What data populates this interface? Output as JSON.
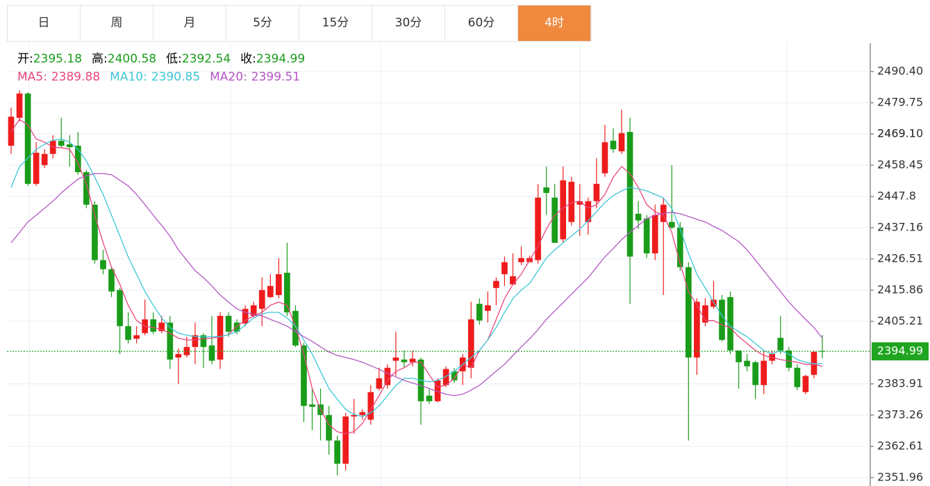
{
  "tabs": {
    "items": [
      "日",
      "周",
      "月",
      "5分",
      "15分",
      "30分",
      "60分",
      "4时"
    ],
    "active": 7
  },
  "chart_data": {
    "type": "candlestick",
    "info_labels": [
      "开:",
      "高:",
      "低:",
      "收:"
    ],
    "up_color": "#ee1c1c",
    "down_color": "#1a9c1a",
    "open": [
      2465.1,
      2474.6,
      2482.9,
      2452.1,
      2458.5,
      2462.3,
      2466.8,
      2465.6,
      2465.1,
      2456.1,
      2445.0,
      2426.1,
      2423.0,
      2415.9,
      2403.6,
      2399.3,
      2401.2,
      2405.9,
      2401.9,
      2404.8,
      2392.9,
      2393.7,
      2396.5,
      2400.5,
      2397.0,
      2392.2,
      2407.1,
      2404.8,
      2404.5,
      2407.1,
      2409.5,
      2413.5,
      2414.2,
      2421.8,
      2408.8,
      2397.0,
      2376.9,
      2376.9,
      2373.3,
      2364.6,
      2356.7,
      2372.8,
      2373.3,
      2371.7,
      2382.3,
      2383.5,
      2391.8,
      2392.2,
      2391.3,
      2392.2,
      2379.9,
      2378.0,
      2383.5,
      2388.2,
      2388.2,
      2389.4,
      2411.2,
      2408.8,
      2416.6,
      2421.3,
      2417.8,
      2425.4,
      2425.4,
      2426.1,
      2450.9,
      2447.4,
      2433.2,
      2439.1,
      2445.0,
      2439.1,
      2446.2,
      2455.7,
      2466.8,
      2463.2,
      2469.8,
      2441.9,
      2440.3,
      2428.4,
      2439.1,
      2439.1,
      2437.2,
      2423.7,
      2392.9,
      2404.8,
      2410.2,
      2412.6,
      2413.5,
      2395.3,
      2391.8,
      2391.3,
      2383.5,
      2391.8,
      2399.6,
      2395.3,
      2389.4,
      2381.1,
      2387.0,
      2395.18
    ],
    "high": [
      2478.1,
      2484.0,
      2483.3,
      2466.3,
      2463.9,
      2468.7,
      2474.6,
      2468.7,
      2469.8,
      2456.8,
      2446.2,
      2429.6,
      2423.7,
      2416.6,
      2408.3,
      2403.6,
      2412.6,
      2408.3,
      2407.1,
      2407.1,
      2396.0,
      2400.0,
      2404.8,
      2401.2,
      2407.1,
      2408.3,
      2408.3,
      2405.9,
      2410.7,
      2411.9,
      2420.2,
      2421.3,
      2426.8,
      2432.0,
      2410.7,
      2397.9,
      2382.3,
      2382.3,
      2376.4,
      2366.2,
      2374.0,
      2378.8,
      2375.2,
      2383.5,
      2389.4,
      2390.6,
      2401.7,
      2395.3,
      2395.3,
      2392.9,
      2382.3,
      2385.8,
      2389.9,
      2389.4,
      2394.1,
      2411.9,
      2413.1,
      2415.4,
      2420.2,
      2427.3,
      2428.4,
      2430.8,
      2427.7,
      2452.1,
      2458.0,
      2452.1,
      2458.0,
      2454.5,
      2452.1,
      2447.4,
      2460.8,
      2472.2,
      2471.0,
      2477.4,
      2474.6,
      2446.2,
      2441.5,
      2445.0,
      2447.4,
      2458.5,
      2439.1,
      2425.4,
      2413.1,
      2413.1,
      2419.0,
      2414.2,
      2415.4,
      2395.3,
      2394.1,
      2391.8,
      2395.3,
      2395.3,
      2407.1,
      2396.5,
      2390.6,
      2387.0,
      2395.3,
      2400.58
    ],
    "low": [
      2462.3,
      2473.4,
      2451.4,
      2451.4,
      2457.5,
      2460.8,
      2464.6,
      2458.0,
      2455.2,
      2443.8,
      2424.9,
      2421.3,
      2413.5,
      2394.1,
      2397.7,
      2397.7,
      2400.5,
      2400.8,
      2401.2,
      2389.0,
      2383.9,
      2392.9,
      2390.6,
      2389.4,
      2390.6,
      2389.0,
      2400.0,
      2400.8,
      2403.6,
      2406.4,
      2403.6,
      2413.1,
      2413.1,
      2407.1,
      2396.5,
      2370.9,
      2368.1,
      2364.6,
      2359.8,
      2352.7,
      2354.4,
      2366.9,
      2371.7,
      2370.0,
      2381.6,
      2382.3,
      2386.6,
      2389.4,
      2389.9,
      2370.0,
      2377.1,
      2377.6,
      2382.8,
      2384.2,
      2383.5,
      2385.8,
      2404.1,
      2404.8,
      2410.7,
      2417.3,
      2417.8,
      2424.4,
      2425.4,
      2424.9,
      2441.5,
      2432.0,
      2432.0,
      2437.9,
      2434.4,
      2434.8,
      2443.8,
      2454.5,
      2462.7,
      2462.3,
      2411.2,
      2436.7,
      2426.8,
      2426.1,
      2414.2,
      2436.7,
      2422.5,
      2364.6,
      2387.0,
      2403.6,
      2409.5,
      2398.4,
      2394.1,
      2382.3,
      2388.2,
      2378.8,
      2380.4,
      2390.6,
      2394.1,
      2388.2,
      2381.8,
      2380.4,
      2385.8,
      2392.54
    ],
    "close": [
      2475.0,
      2482.9,
      2452.1,
      2462.7,
      2462.3,
      2466.8,
      2465.1,
      2464.6,
      2456.1,
      2445.0,
      2426.1,
      2423.0,
      2415.4,
      2403.6,
      2398.9,
      2400.5,
      2405.9,
      2401.7,
      2404.8,
      2392.2,
      2394.1,
      2396.5,
      2400.5,
      2396.5,
      2391.8,
      2407.1,
      2401.7,
      2401.7,
      2409.5,
      2410.7,
      2415.9,
      2417.3,
      2421.3,
      2408.3,
      2397.0,
      2376.4,
      2376.1,
      2373.3,
      2364.6,
      2356.7,
      2372.8,
      2373.3,
      2374.3,
      2381.1,
      2385.8,
      2389.4,
      2392.9,
      2391.3,
      2392.5,
      2378.0,
      2378.0,
      2385.1,
      2389.0,
      2385.1,
      2392.9,
      2405.9,
      2405.5,
      2410.7,
      2419.0,
      2425.4,
      2420.6,
      2426.8,
      2426.8,
      2447.4,
      2449.0,
      2432.0,
      2453.3,
      2452.8,
      2446.2,
      2446.2,
      2452.1,
      2466.3,
      2463.9,
      2469.4,
      2427.3,
      2439.6,
      2428.4,
      2441.5,
      2445.0,
      2437.2,
      2423.7,
      2392.9,
      2411.9,
      2410.7,
      2412.6,
      2398.9,
      2395.3,
      2391.3,
      2389.9,
      2383.5,
      2391.8,
      2394.1,
      2395.3,
      2389.4,
      2382.8,
      2386.6,
      2394.8,
      2394.99
    ],
    "series": [
      {
        "name": "MA5:",
        "color": "#e8467c",
        "values": [
          2469.8,
          2474.1,
          2472.2,
          2467.4,
          2466.3,
          2464.6,
          2464.4,
          2463.9,
          2459.2,
          2452.1,
          2441.4,
          2432.0,
          2423.7,
          2417.8,
          2410.7,
          2405.5,
          2403.6,
          2403.1,
          2402.4,
          2401.2,
          2399.5,
          2398.9,
          2398.9,
          2399.3,
          2399.5,
          2400.0,
          2400.7,
          2403.6,
          2405.5,
          2407.1,
          2408.3,
          2410.7,
          2411.8,
          2410.7,
          2403.6,
          2394.1,
          2382.3,
          2375.2,
          2370.0,
          2367.6,
          2366.9,
          2367.6,
          2370.4,
          2375.2,
          2379.9,
          2385.1,
          2388.2,
          2389.4,
          2391.3,
          2391.3,
          2387.0,
          2382.8,
          2383.5,
          2385.8,
          2390.6,
          2389.4,
          2395.3,
          2398.9,
          2405.9,
          2413.0,
          2417.8,
          2421.3,
          2426.1,
          2430.8,
          2436.7,
          2441.4,
          2443.8,
          2445.7,
          2446.2,
          2443.8,
          2445.0,
          2448.5,
          2454.4,
          2458.0,
          2455.6,
          2450.9,
          2445.0,
          2442.6,
          2441.4,
          2435.5,
          2424.9,
          2415.4,
          2410.7,
          2405.5,
          2405.5,
          2404.0,
          2403.1,
          2400.0,
          2397.7,
          2395.3,
          2393.6,
          2392.9,
          2392.2,
          2391.7,
          2391.3,
          2390.6,
          2390.6,
          2389.88
        ]
      },
      {
        "name": "MA10:",
        "color": "#3cc6d6",
        "values": [
          2450.9,
          2458.0,
          2460.8,
          2463.9,
          2465.6,
          2467.0,
          2467.4,
          2466.3,
          2463.9,
          2459.9,
          2454.4,
          2448.5,
          2441.4,
          2434.3,
          2427.2,
          2421.3,
          2415.4,
          2410.7,
          2406.4,
          2403.1,
          2401.2,
          2400.5,
          2400.0,
          2400.0,
          2400.0,
          2400.0,
          2400.7,
          2401.7,
          2404.0,
          2406.4,
          2407.8,
          2408.3,
          2408.3,
          2406.4,
          2403.6,
          2398.9,
          2394.1,
          2388.2,
          2382.3,
          2378.7,
          2375.2,
          2373.5,
          2372.8,
          2374.0,
          2376.4,
          2379.9,
          2383.4,
          2385.8,
          2385.8,
          2385.1,
          2384.6,
          2385.1,
          2386.5,
          2388.2,
          2390.6,
          2392.9,
          2395.3,
          2398.9,
          2403.1,
          2408.3,
          2413.0,
          2415.9,
          2418.2,
          2422.5,
          2426.8,
          2429.6,
          2432.0,
          2434.3,
          2436.7,
          2439.5,
          2442.6,
          2445.7,
          2448.1,
          2449.7,
          2450.9,
          2450.4,
          2449.7,
          2448.5,
          2447.3,
          2443.8,
          2436.7,
          2428.4,
          2421.3,
          2416.6,
          2411.8,
          2407.1,
          2403.6,
          2401.7,
          2400.0,
          2397.7,
          2395.3,
          2394.1,
          2395.3,
          2394.1,
          2392.2,
          2391.3,
          2390.8,
          2390.85
        ]
      },
      {
        "name": "MA20:",
        "color": "#b455c4",
        "values": [
          2432.0,
          2435.5,
          2439.1,
          2441.4,
          2443.8,
          2446.2,
          2449.0,
          2451.4,
          2453.7,
          2454.9,
          2455.6,
          2455.6,
          2455.2,
          2453.3,
          2451.4,
          2448.5,
          2445.0,
          2441.4,
          2437.9,
          2434.3,
          2429.6,
          2426.1,
          2422.5,
          2420.1,
          2417.3,
          2414.2,
          2411.8,
          2409.5,
          2408.3,
          2407.6,
          2407.1,
          2405.9,
          2404.8,
          2403.6,
          2401.7,
          2400.0,
          2398.4,
          2396.5,
          2394.8,
          2393.6,
          2392.9,
          2392.2,
          2391.3,
          2390.1,
          2388.9,
          2387.5,
          2386.3,
          2385.1,
          2384.2,
          2383.4,
          2382.3,
          2381.3,
          2380.4,
          2379.9,
          2380.4,
          2381.8,
          2383.4,
          2385.8,
          2388.2,
          2390.6,
          2393.6,
          2396.5,
          2399.3,
          2402.4,
          2405.9,
          2408.8,
          2411.6,
          2414.5,
          2417.3,
          2420.1,
          2423.7,
          2427.2,
          2430.1,
          2433.1,
          2435.5,
          2437.9,
          2440.2,
          2441.4,
          2442.1,
          2442.4,
          2441.9,
          2441.0,
          2440.0,
          2439.1,
          2437.6,
          2436.2,
          2434.3,
          2432.4,
          2429.6,
          2426.1,
          2422.5,
          2419.0,
          2415.4,
          2411.8,
          2408.8,
          2405.9,
          2403.1,
          2399.51
        ]
      }
    ],
    "ylim": [
      2349.1,
      2500.1
    ],
    "yticks": [
      {
        "value": 2490.4,
        "label": "2490.40"
      },
      2479.75,
      2469.1,
      {
        "value": 2469.1,
        "label": "2469.10"
      },
      2458.45,
      2447.8,
      2437.16,
      2426.51,
      2415.86,
      2405.21,
      2383.91,
      2373.26,
      2362.61,
      2351.96
    ],
    "grid": true,
    "last_price_line": true,
    "last_price_color": "#1fa51f"
  }
}
